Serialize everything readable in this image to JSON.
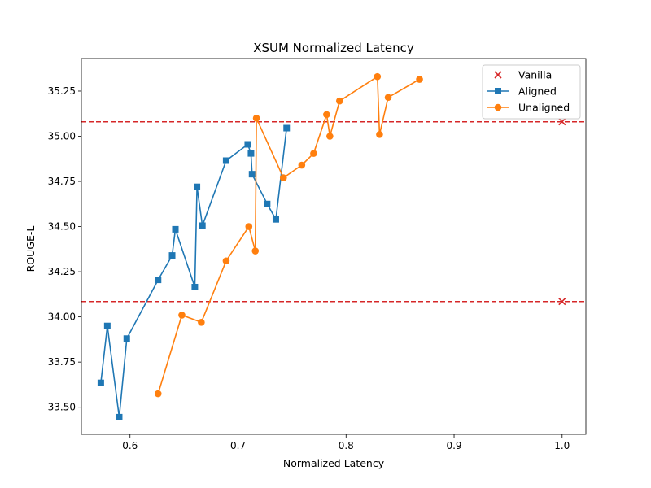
{
  "chart_data": {
    "type": "line",
    "title": "XSUM Normalized Latency",
    "xlabel": "Normalized Latency",
    "ylabel": "ROUGE-L",
    "xlim": [
      0.555,
      1.022
    ],
    "ylim": [
      33.35,
      35.43
    ],
    "xticks": [
      0.6,
      0.7,
      0.8,
      0.9,
      1.0
    ],
    "xtick_labels": [
      "0.6",
      "0.7",
      "0.8",
      "0.9",
      "1.0"
    ],
    "yticks": [
      33.5,
      33.75,
      34.0,
      34.25,
      34.5,
      34.75,
      35.0,
      35.25
    ],
    "ytick_labels": [
      "33.50",
      "33.75",
      "34.00",
      "34.25",
      "34.50",
      "34.75",
      "35.00",
      "35.25"
    ],
    "grid": false,
    "legend_position": "top-right",
    "hlines": [
      {
        "y": 35.08,
        "color": "#d62728",
        "style": "dashed"
      },
      {
        "y": 34.085,
        "color": "#d62728",
        "style": "dashed"
      }
    ],
    "series": [
      {
        "name": "Vanilla",
        "kind": "scatter",
        "marker": "x",
        "color": "#d62728",
        "x": [
          1.0,
          1.0
        ],
        "y": [
          35.08,
          34.085
        ]
      },
      {
        "name": "Aligned",
        "kind": "line",
        "marker": "square",
        "color": "#1f77b4",
        "x": [
          0.573,
          0.579,
          0.59,
          0.597,
          0.626,
          0.639,
          0.642,
          0.66,
          0.662,
          0.667,
          0.689,
          0.709,
          0.712,
          0.713,
          0.727,
          0.735,
          0.745
        ],
        "y": [
          33.635,
          33.95,
          33.445,
          33.88,
          34.205,
          34.34,
          34.485,
          34.165,
          34.72,
          34.505,
          34.865,
          34.955,
          34.905,
          34.79,
          34.625,
          34.54,
          35.045
        ]
      },
      {
        "name": "Unaligned",
        "kind": "line",
        "marker": "circle",
        "color": "#ff7f0e",
        "x": [
          0.626,
          0.648,
          0.666,
          0.689,
          0.71,
          0.716,
          0.717,
          0.742,
          0.759,
          0.77,
          0.782,
          0.785,
          0.794,
          0.829,
          0.831,
          0.839,
          0.868
        ],
        "y": [
          33.575,
          34.01,
          33.97,
          34.31,
          34.5,
          34.365,
          35.1,
          34.77,
          34.84,
          34.905,
          35.12,
          35.0,
          35.195,
          35.33,
          35.01,
          35.215,
          35.315
        ]
      }
    ]
  }
}
